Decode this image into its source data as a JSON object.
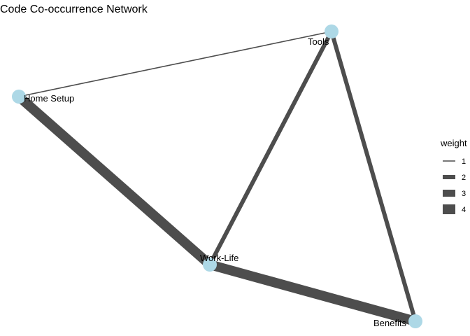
{
  "title": "Code Co-occurrence Network",
  "network": {
    "nodes": [
      {
        "id": "tools",
        "label": "Tools"
      },
      {
        "id": "home-setup",
        "label": "Home Setup"
      },
      {
        "id": "work-life",
        "label": "Work-Life"
      },
      {
        "id": "benefits",
        "label": "Benefits"
      }
    ],
    "edges": [
      {
        "from": "home-setup",
        "to": "tools",
        "weight": 1
      },
      {
        "from": "home-setup",
        "to": "work-life",
        "weight": 4
      },
      {
        "from": "work-life",
        "to": "tools",
        "weight": 2
      },
      {
        "from": "tools",
        "to": "benefits",
        "weight": 2
      },
      {
        "from": "work-life",
        "to": "benefits",
        "weight": 4
      }
    ],
    "node_color": "#add8e6",
    "edge_color": "#4d4d4d"
  },
  "legend": {
    "title": "weight",
    "items": [
      {
        "label": "1",
        "weight": 1
      },
      {
        "label": "2",
        "weight": 2
      },
      {
        "label": "3",
        "weight": 3
      },
      {
        "label": "4",
        "weight": 4
      }
    ]
  }
}
